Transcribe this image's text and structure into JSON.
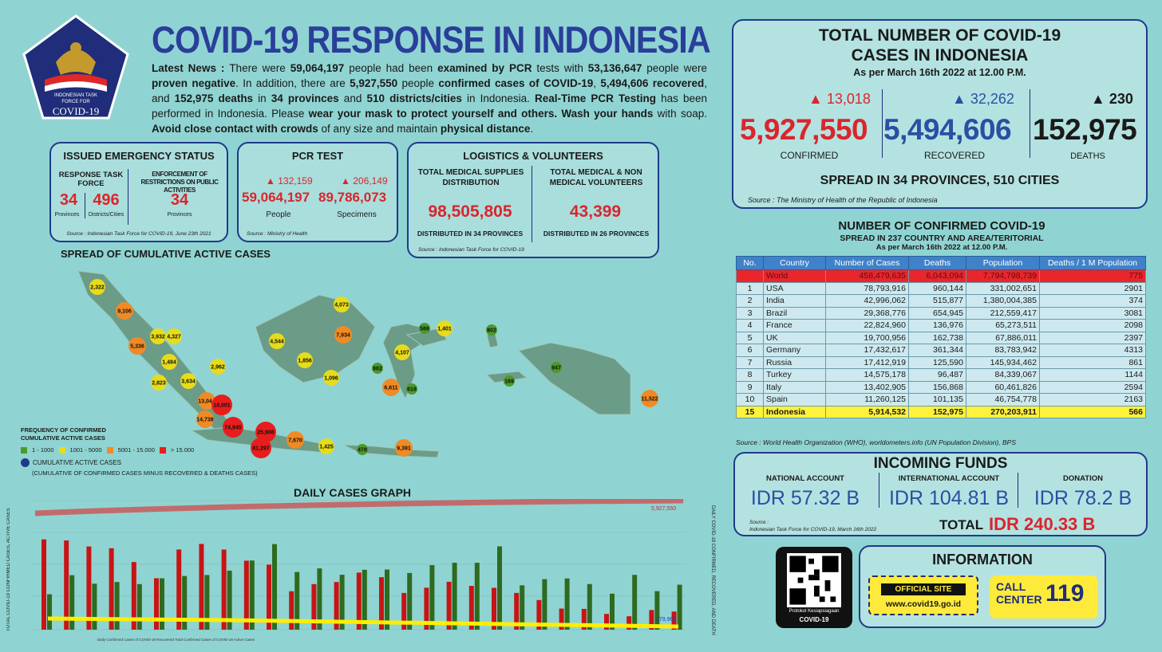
{
  "logo": {
    "line1": "INDONESIAN TASK",
    "line2": "FORCE FOR",
    "line3": "COVID-19"
  },
  "title": "COVID-19 RESPONSE IN INDONESIA",
  "news": {
    "p1": "Latest News : ",
    "p2": "There were ",
    "pcr_examined": "59,064,197",
    "p3": " people had been ",
    "p4": "examined by PCR",
    "p5": " tests with ",
    "proven_neg": "53,136,647",
    "p6": " people were ",
    "p7": "proven negative",
    "p8": ". In addition, there are ",
    "confirmed": "5,927,550",
    "p9": " people ",
    "p10": "confirmed cases of COVID-19",
    "p11": ", ",
    "recovered": "5,494,606",
    "p12": " recovered",
    "p13": ", and ",
    "deaths": "152,975",
    "p14": " deaths",
    "p15": " in ",
    "provinces": "34 provinces",
    "p16": " and ",
    "districts": "510 districts/cities",
    "p17": " in Indonesia. ",
    "p18": "Real-Time PCR Testing",
    "p19": " has been performed in Indonesia. Please ",
    "p20": "wear your mask to protect yourself and others. Wash your hands",
    "p21": " with soap. ",
    "p22": "Avoid close contact with crowds",
    "p23": " of any size and maintain ",
    "p24": "physical distance",
    "p25": "."
  },
  "emergency": {
    "title": "ISSUED EMERGENCY STATUS",
    "col1_head": "RESPONSE TASK FORCE",
    "col2_head": "ENFORCEMENT OF RESTRICTIONS ON PUBLIC ACTIVITIES",
    "v1": "34",
    "l1": "Provinces",
    "v2": "496",
    "l2": "Districts/Cities",
    "v3": "34",
    "l3": "Provinces",
    "source": "Source : Indonesian Task Force for COVID-19, June 23th 2021"
  },
  "pcr": {
    "title": "PCR TEST",
    "people_inc": "132,159",
    "people": "59,064,197",
    "people_label": "People",
    "spec_inc": "206,149",
    "spec": "89,786,073",
    "spec_label": "Specimens",
    "source": "Source : Ministry of Health"
  },
  "logistics": {
    "title": "LOGISTICS & VOLUNTEERS",
    "h1": "TOTAL MEDICAL SUPPLIES DISTRIBUTION",
    "v1": "98,505,805",
    "f1": "DISTRIBUTED IN 34 PROVINCES",
    "h2": "TOTAL MEDICAL & NON MEDICAL VOLUNTEERS",
    "v2": "43,399",
    "f2": "DISTRIBUTED IN 26 PROVINCES",
    "source": "Source : Indonesian Task Force for COVID-19"
  },
  "totals": {
    "title1": "TOTAL NUMBER OF COVID-19",
    "title2": "CASES IN INDONESIA",
    "asof": "As per March 16th 2022 at 12.00 P.M.",
    "conf_inc": "13,018",
    "confirmed": "5,927,550",
    "conf_label": "CONFIRMED",
    "rec_inc": "32,262",
    "recovered": "5,494,606",
    "rec_label": "RECOVERED",
    "death_inc": "230",
    "deaths": "152,975",
    "death_label": "DEATHS",
    "spread": "SPREAD IN 34 PROVINCES, 510 CITIES",
    "source": "Source : The Ministry of Health of the Republic of Indonesia"
  },
  "world": {
    "title": "NUMBER OF CONFIRMED COVID-19",
    "subtitle": "SPREAD IN 237 COUNTRY AND AREA/TERITORIAL",
    "asof": "As per March 16th 2022 at 12.00 P.M.",
    "headers": [
      "No.",
      "Country",
      "Number of Cases",
      "Deaths",
      "Population",
      "Deaths / 1 M Population"
    ],
    "world_row": [
      "",
      "World",
      "458,479,635",
      "6,043,094",
      "7,794,798,739",
      "775"
    ],
    "rows": [
      [
        "1",
        "USA",
        "78,793,916",
        "960,144",
        "331,002,651",
        "2901"
      ],
      [
        "2",
        "India",
        "42,996,062",
        "515,877",
        "1,380,004,385",
        "374"
      ],
      [
        "3",
        "Brazil",
        "29,368,776",
        "654,945",
        "212,559,417",
        "3081"
      ],
      [
        "4",
        "France",
        "22,824,960",
        "136,976",
        "65,273,511",
        "2098"
      ],
      [
        "5",
        "UK",
        "19,700,956",
        "162,738",
        "67,886,011",
        "2397"
      ],
      [
        "6",
        "Germany",
        "17,432,617",
        "361,344",
        "83,783,942",
        "4313"
      ],
      [
        "7",
        "Russia",
        "17,412,919",
        "125,590",
        "145,934,462",
        "861"
      ],
      [
        "8",
        "Turkey",
        "14,575,178",
        "96,487",
        "84,339,067",
        "1144"
      ],
      [
        "9",
        "Italy",
        "13,402,905",
        "156,868",
        "60,461,826",
        "2594"
      ],
      [
        "10",
        "Spain",
        "11,260,125",
        "101,135",
        "46,754,778",
        "2163"
      ]
    ],
    "indo_row": [
      "15",
      "Indonesia",
      "5,914,532",
      "152,975",
      "270,203,911",
      "566"
    ],
    "source": "Source : World Health Organization (WHO), worldometers.info (UN Population Division), BPS"
  },
  "funds": {
    "title": "INCOMING FUNDS",
    "h1": "NATIONAL ACCOUNT",
    "v1": "IDR 57.32 B",
    "h2": "INTERNATIONAL ACCOUNT",
    "v2": "IDR 104.81 B",
    "h3": "DONATION",
    "v3": "IDR 78.2 B",
    "source1": "Source :",
    "source2": "Indonesian Task Force for COVID-19, March 16th 2022",
    "total_label": "TOTAL",
    "total": "IDR 240.33 B"
  },
  "qr": {
    "l1": "Protokol Kesiapsiagaan",
    "l2": "COVID-19"
  },
  "info": {
    "title": "INFORMATION",
    "site_label": "OFFICIAL SITE",
    "site": "www.covid19.go.id",
    "call1": "CALL",
    "call2": "CENTER",
    "call_num": "119"
  },
  "map": {
    "title": "SPREAD OF CUMULATIVE ACTIVE CASES",
    "legend_title1": "FREQUENCY OF CONFIRMED",
    "legend_title2": "CUMULATIVE ACTIVE CASES",
    "leg1": "1 - 1000",
    "leg2": "1001 - 5000",
    "leg3": "5001 - 15.000",
    "leg4": "> 15.000",
    "leg5": "CUMULATIVE ACTIVE CASES",
    "leg6": "(CUMULATIVE OF CONFIRMED CASES MINUS RECOVERED & DEATHS CASES)",
    "colors": {
      "green": "#4c9a2a",
      "yellow": "#e8dc1a",
      "orange": "#f08a24",
      "red": "#e81d1d"
    },
    "bubbles": [
      {
        "v": "2,322",
        "c": "yellow"
      },
      {
        "v": "9,106",
        "c": "orange"
      },
      {
        "v": "3,932",
        "c": "yellow"
      },
      {
        "v": "4,327",
        "c": "yellow"
      },
      {
        "v": "5,336",
        "c": "orange"
      },
      {
        "v": "1,484",
        "c": "yellow"
      },
      {
        "v": "2,962",
        "c": "yellow"
      },
      {
        "v": "3,634",
        "c": "yellow"
      },
      {
        "v": "2,823",
        "c": "yellow"
      },
      {
        "v": "13,044",
        "c": "orange"
      },
      {
        "v": "18,001",
        "c": "red"
      },
      {
        "v": "14,738",
        "c": "orange"
      },
      {
        "v": "74,945",
        "c": "red"
      },
      {
        "v": "25,908",
        "c": "red"
      },
      {
        "v": "81,297",
        "c": "red"
      },
      {
        "v": "7,670",
        "c": "orange"
      },
      {
        "v": "1,425",
        "c": "yellow"
      },
      {
        "v": "478",
        "c": "green"
      },
      {
        "v": "9,391",
        "c": "orange"
      },
      {
        "v": "4,544",
        "c": "yellow"
      },
      {
        "v": "1,856",
        "c": "yellow"
      },
      {
        "v": "1,096",
        "c": "yellow"
      },
      {
        "v": "4,073",
        "c": "yellow"
      },
      {
        "v": "7,934",
        "c": "orange"
      },
      {
        "v": "586",
        "c": "green"
      },
      {
        "v": "1,401",
        "c": "yellow"
      },
      {
        "v": "4,107",
        "c": "yellow"
      },
      {
        "v": "882",
        "c": "green"
      },
      {
        "v": "6,611",
        "c": "orange"
      },
      {
        "v": "618",
        "c": "green"
      },
      {
        "v": "802",
        "c": "green"
      },
      {
        "v": "169",
        "c": "green"
      },
      {
        "v": "947",
        "c": "green"
      },
      {
        "v": "11,522",
        "c": "orange"
      }
    ]
  },
  "graph": {
    "title": "DAILY CASES GRAPH",
    "y_left": "TOTAL COVID-19 CONFIRMED CASES, ACTIVE CASES",
    "y_right": "DAILY COVID-19 CONFIRMED, RECOVERED, AND DEATH",
    "total_label": "5,927,550",
    "active_label": "279,969",
    "legend": "Daily Confirmed Cases of COVID-19   Recovered   Total Confirmed Cases of COVID-19   Active Cases"
  },
  "chart_data": {
    "type": "bar",
    "title": "DAILY CASES GRAPH",
    "xlabel": "",
    "ylabel": "TOTAL COVID-19 CONFIRMED CASES, ACTIVE CASES",
    "series": [
      {
        "name": "Daily Confirmed Cases of COVID-19",
        "values": [
          64718,
          63956,
          59635,
          58388,
          48484,
          36874,
          57491,
          61488,
          57426,
          49447,
          46643,
          27572,
          32666,
          34196,
          40911,
          37622,
          26347,
          30108,
          34350,
          31398,
          30000,
          26336,
          21257,
          15131,
          14916,
          11298,
          9616,
          14100,
          13018
        ]
      },
      {
        "name": "Recovered",
        "values": [
          25395,
          39072,
          32964,
          34171,
          32673,
          36828,
          38470,
          39175,
          42316,
          49603,
          61361,
          41365,
          43933,
          39367,
          42939,
          43134,
          40662,
          46267,
          48000,
          48000,
          59719,
          31793,
          36229,
          36712,
          32720,
          25800,
          39296,
          27611,
          32262
        ]
      },
      {
        "name": "Active Cases",
        "values": [
          0,
          0,
          0,
          0,
          0,
          0,
          0,
          0,
          0,
          0,
          0,
          0,
          0,
          0,
          0,
          0,
          0,
          0,
          0,
          0,
          0,
          0,
          0,
          0,
          0,
          0,
          0,
          0,
          279969
        ]
      }
    ]
  }
}
